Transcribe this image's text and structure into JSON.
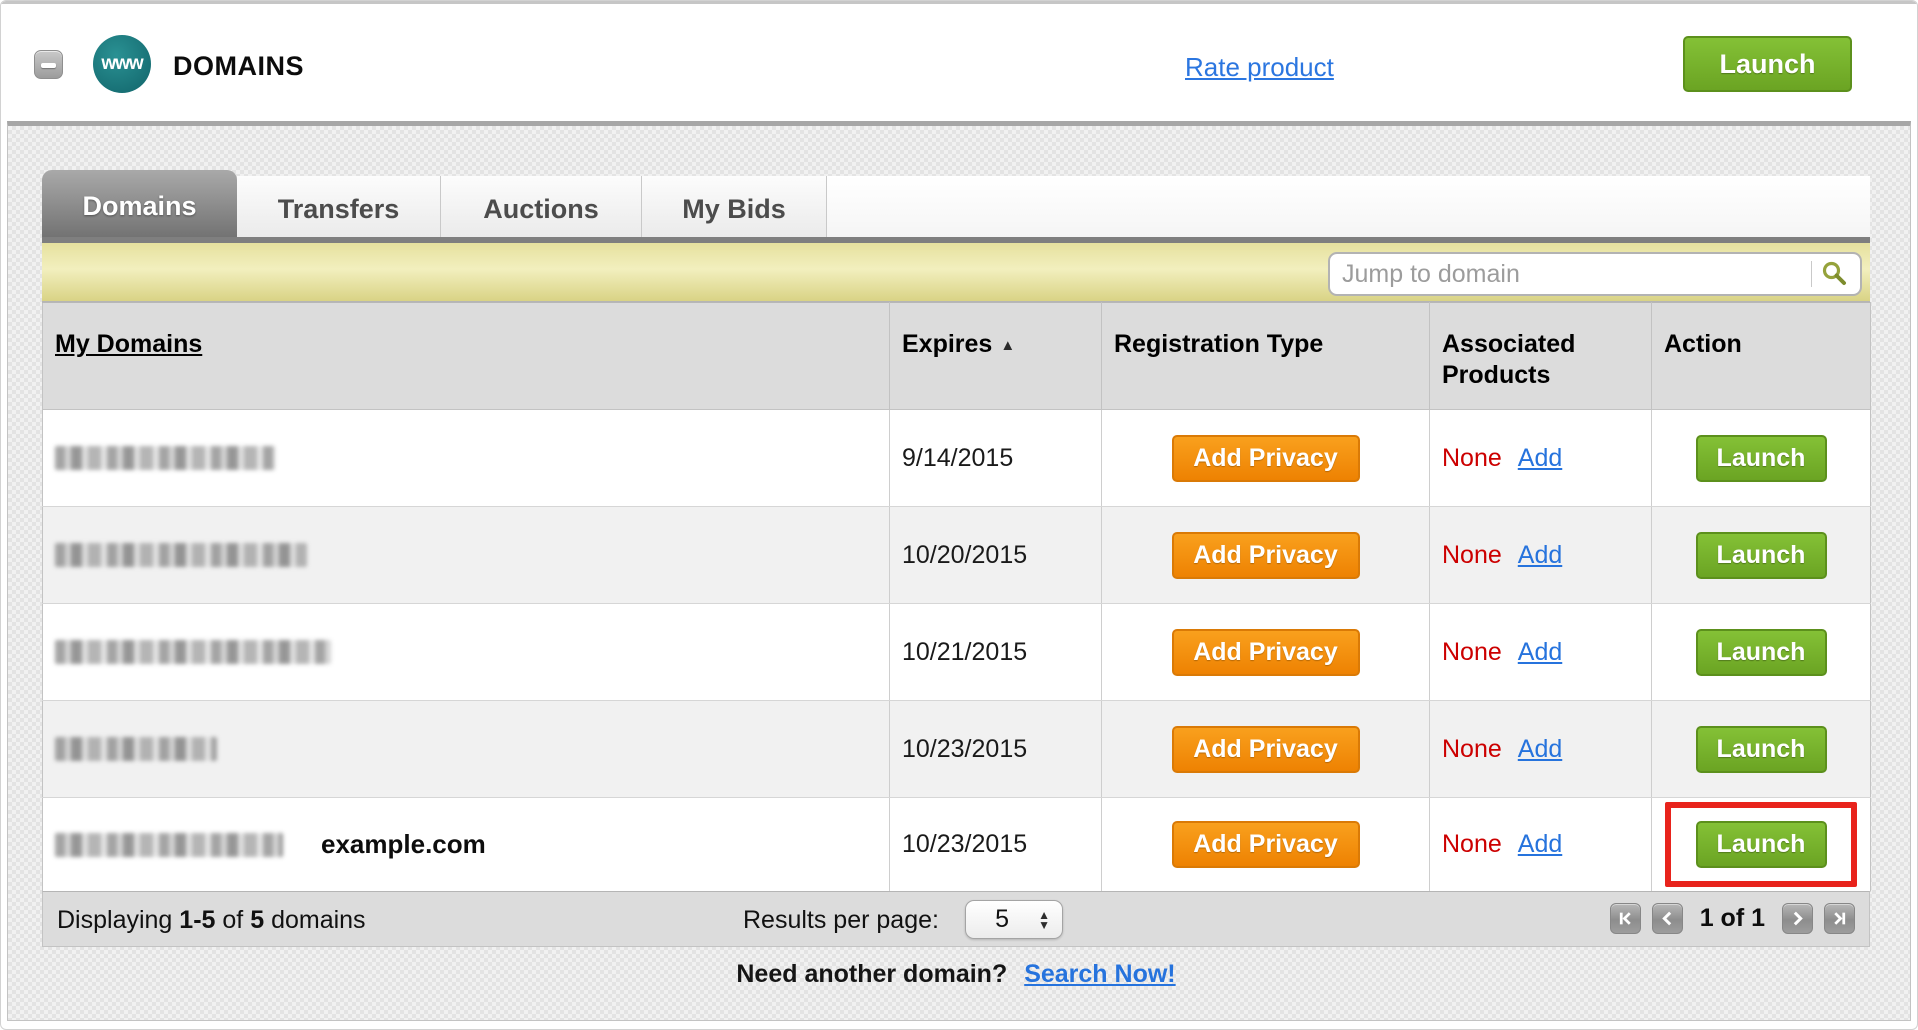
{
  "header": {
    "icon_text": "www",
    "title": "DOMAINS",
    "rate_product_label": "Rate product",
    "launch_label": "Launch"
  },
  "tabs": [
    {
      "label": "Domains",
      "active": true
    },
    {
      "label": "Transfers",
      "active": false
    },
    {
      "label": "Auctions",
      "active": false
    },
    {
      "label": "My Bids",
      "active": false
    }
  ],
  "search": {
    "placeholder": "Jump to domain",
    "icon": "magnifier-icon"
  },
  "table": {
    "columns": [
      "My Domains",
      "Expires",
      "Registration Type",
      "Associated Products",
      "Action"
    ],
    "sort": {
      "column": "Expires",
      "direction": "ascending",
      "icon": "sort-asc-triangle"
    },
    "rows": [
      {
        "domain_redacted": true,
        "domain_note": "",
        "expires": "9/14/2015",
        "privacy_button": "Add Privacy",
        "associated_status": "None",
        "associated_add": "Add",
        "action_button": "Launch",
        "highlighted": false
      },
      {
        "domain_redacted": true,
        "domain_note": "",
        "expires": "10/20/2015",
        "privacy_button": "Add Privacy",
        "associated_status": "None",
        "associated_add": "Add",
        "action_button": "Launch",
        "highlighted": false
      },
      {
        "domain_redacted": true,
        "domain_note": "",
        "expires": "10/21/2015",
        "privacy_button": "Add Privacy",
        "associated_status": "None",
        "associated_add": "Add",
        "action_button": "Launch",
        "highlighted": false
      },
      {
        "domain_redacted": true,
        "domain_note": "",
        "expires": "10/23/2015",
        "privacy_button": "Add Privacy",
        "associated_status": "None",
        "associated_add": "Add",
        "action_button": "Launch",
        "highlighted": false
      },
      {
        "domain_redacted": true,
        "domain_note": "example.com",
        "expires": "10/23/2015",
        "privacy_button": "Add Privacy",
        "associated_status": "None",
        "associated_add": "Add",
        "action_button": "Launch",
        "highlighted": true
      }
    ]
  },
  "footer": {
    "displaying_word": "Displaying",
    "range": "1-5",
    "of_word": "of",
    "total": "5",
    "domains_word": "domains",
    "results_per_page_label": "Results per page:",
    "results_per_page_value": "5",
    "page_status": "1 of 1"
  },
  "bottom_cta": {
    "question": "Need another domain?",
    "link_label": "Search Now!"
  },
  "colors": {
    "accent_green": "#76b52b",
    "accent_orange": "#f1941a",
    "status_red": "#cc0000",
    "link_blue": "#2673dd",
    "highlight_red": "#e8231c",
    "brand_teal": "#1a7e81"
  }
}
